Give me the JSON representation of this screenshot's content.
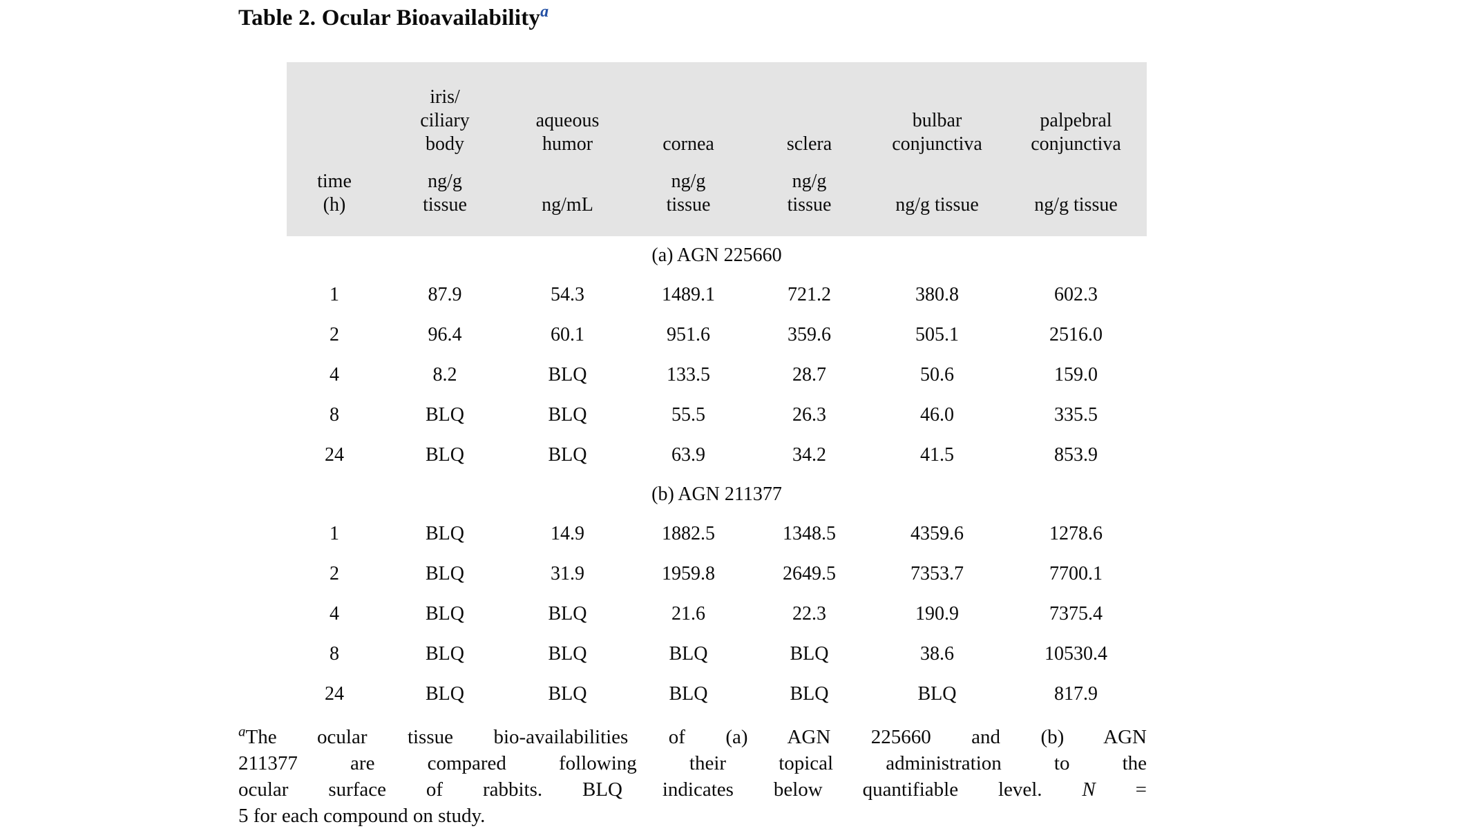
{
  "title": {
    "label": "Table 2. Ocular Bioavailability",
    "footnote_marker": "a"
  },
  "colors": {
    "title_marker_blue": "#2451a5",
    "header_background": "#e4e4e4",
    "text": "#0b0b0b",
    "page_background": "#ffffff"
  },
  "table": {
    "columns": [
      {
        "id": "time",
        "group": "",
        "unit": "time\n(h)"
      },
      {
        "id": "iris-ciliary-body",
        "group": "iris/\nciliary\nbody",
        "unit": "ng/g\ntissue"
      },
      {
        "id": "aqueous-humor",
        "group": "aqueous\nhumor",
        "unit": "ng/mL"
      },
      {
        "id": "cornea",
        "group": "cornea",
        "unit": "ng/g\ntissue"
      },
      {
        "id": "sclera",
        "group": "sclera",
        "unit": "ng/g\ntissue"
      },
      {
        "id": "bulbar-conjunctiva",
        "group": "bulbar\nconjunctiva",
        "unit": "ng/g tissue"
      },
      {
        "id": "palpebral-conjunctiva",
        "group": "palpebral\nconjunctiva",
        "unit": "ng/g tissue"
      }
    ],
    "sections": [
      {
        "label": "(a) AGN 225660",
        "rows": [
          [
            "1",
            "87.9",
            "54.3",
            "1489.1",
            "721.2",
            "380.8",
            "602.3"
          ],
          [
            "2",
            "96.4",
            "60.1",
            "951.6",
            "359.6",
            "505.1",
            "2516.0"
          ],
          [
            "4",
            "8.2",
            "BLQ",
            "133.5",
            "28.7",
            "50.6",
            "159.0"
          ],
          [
            "8",
            "BLQ",
            "BLQ",
            "55.5",
            "26.3",
            "46.0",
            "335.5"
          ],
          [
            "24",
            "BLQ",
            "BLQ",
            "63.9",
            "34.2",
            "41.5",
            "853.9"
          ]
        ]
      },
      {
        "label": "(b) AGN 211377",
        "rows": [
          [
            "1",
            "BLQ",
            "14.9",
            "1882.5",
            "1348.5",
            "4359.6",
            "1278.6"
          ],
          [
            "2",
            "BLQ",
            "31.9",
            "1959.8",
            "2649.5",
            "7353.7",
            "7700.1"
          ],
          [
            "4",
            "BLQ",
            "BLQ",
            "21.6",
            "22.3",
            "190.9",
            "7375.4"
          ],
          [
            "8",
            "BLQ",
            "BLQ",
            "BLQ",
            "BLQ",
            "38.6",
            "10530.4"
          ],
          [
            "24",
            "BLQ",
            "BLQ",
            "BLQ",
            "BLQ",
            "BLQ",
            "817.9"
          ]
        ]
      }
    ]
  },
  "footnote": {
    "marker": "a",
    "line1": "The ocular tissue bio-availabilities of (a) AGN 225660 and (b) AGN",
    "line2": "211377 are compared following their topical administration to the",
    "line3_pre": "ocular surface of rabbits. BLQ indicates below quantifiable level. ",
    "line3_italic": "N",
    "line3_post": " =",
    "line4": "5 for each compound on study."
  }
}
